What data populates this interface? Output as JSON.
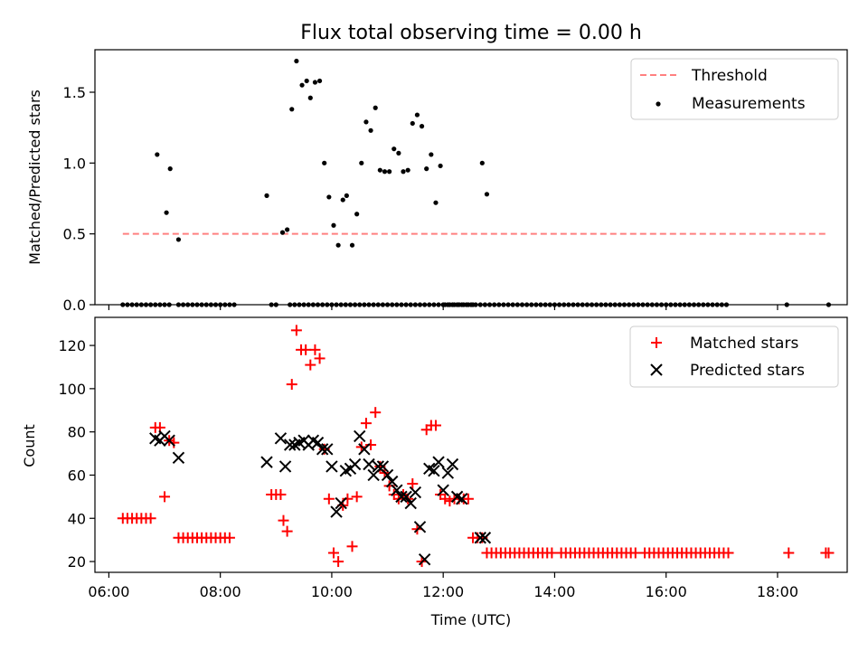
{
  "chart_data": [
    {
      "type": "scatter",
      "title": "Flux total observing time = 0.00 h",
      "xlabel": "",
      "ylabel": "Matched/Predicted stars",
      "xlim": [
        "05:45",
        "19:15"
      ],
      "ylim": [
        0,
        1.8
      ],
      "yticks": [
        "0.0",
        "0.5",
        "1.0",
        "1.5"
      ],
      "legend_position": "top-right",
      "threshold": {
        "name": "Threshold",
        "y": 0.5,
        "x_start": "06:15",
        "x_end": "18:55",
        "color": "#ff8080",
        "style": "dashed"
      },
      "series": [
        {
          "name": "Measurements",
          "color": "#000000",
          "x": [
            "06:15",
            "06:20",
            "06:25",
            "06:30",
            "06:35",
            "06:40",
            "06:45",
            "06:50",
            "06:55",
            "07:00",
            "07:05",
            "07:15",
            "07:20",
            "07:25",
            "07:30",
            "07:35",
            "07:40",
            "07:45",
            "07:50",
            "07:55",
            "08:00",
            "08:05",
            "08:10",
            "08:15",
            "08:55",
            "09:00",
            "09:15",
            "09:20",
            "09:25",
            "09:30",
            "09:35",
            "09:40",
            "09:45",
            "09:50",
            "09:55",
            "10:00",
            "10:05",
            "10:10",
            "10:15",
            "10:20",
            "10:25",
            "10:30",
            "10:35",
            "10:40",
            "10:45",
            "10:50",
            "10:55",
            "11:00",
            "11:05",
            "11:10",
            "11:15",
            "11:20",
            "11:25",
            "11:30",
            "11:35",
            "11:40",
            "11:45",
            "11:50",
            "11:55",
            "12:00",
            "12:05",
            "12:10",
            "12:15",
            "12:20",
            "12:25",
            "12:30",
            "12:35",
            "12:40",
            "12:45",
            "12:50",
            "12:55",
            "13:00",
            "13:05",
            "13:10",
            "13:15",
            "13:20",
            "13:25",
            "13:30",
            "13:35",
            "13:40",
            "13:45",
            "13:50",
            "13:55",
            "14:00",
            "14:05",
            "14:10",
            "14:15",
            "14:20",
            "14:25",
            "14:30",
            "14:35",
            "14:40",
            "14:45",
            "14:50",
            "14:55",
            "15:00",
            "15:05",
            "15:10",
            "15:15",
            "15:20",
            "15:25",
            "15:30",
            "15:35",
            "15:40",
            "15:45",
            "15:50",
            "15:55",
            "16:00",
            "16:05",
            "16:10",
            "16:15",
            "16:20",
            "16:25",
            "16:30",
            "16:35",
            "16:40",
            "16:45",
            "16:50",
            "16:55",
            "17:00",
            "17:05",
            "18:10",
            "18:55"
          ],
          "y": [
            0,
            0,
            0,
            0,
            0,
            0,
            0,
            0,
            0,
            0,
            0,
            0,
            0,
            0,
            0,
            0,
            0,
            0,
            0,
            0,
            0,
            0,
            0,
            0,
            0,
            0,
            0,
            0,
            0,
            0,
            0,
            0,
            0,
            0,
            0,
            0,
            0,
            0,
            0,
            0,
            0,
            0,
            0,
            0,
            0,
            0,
            0,
            0,
            0,
            0,
            0,
            0,
            0,
            0,
            0,
            0,
            0,
            0,
            0,
            0,
            0,
            0,
            0,
            0,
            0,
            0,
            0,
            0,
            0,
            0,
            0,
            0,
            0,
            0,
            0,
            0,
            0,
            0,
            0,
            0,
            0,
            0,
            0,
            0,
            0,
            0,
            0,
            0,
            0,
            0,
            0,
            0,
            0,
            0,
            0,
            0,
            0,
            0,
            0,
            0,
            0,
            0,
            0,
            0,
            0,
            0,
            0,
            0,
            0,
            0,
            0,
            0,
            0,
            0,
            0,
            0,
            0,
            0,
            0,
            0,
            0,
            0,
            0
          ],
          "x_extra": [
            "06:52",
            "07:02",
            "07:06",
            "07:15",
            "08:50",
            "09:07",
            "09:12",
            "09:17",
            "09:22",
            "09:28",
            "09:33",
            "09:37",
            "09:42",
            "09:47",
            "09:52",
            "09:57",
            "10:02",
            "10:07",
            "10:12",
            "10:16",
            "10:22",
            "10:27",
            "10:32",
            "10:37",
            "10:42",
            "10:47",
            "10:52",
            "10:57",
            "11:02",
            "11:07",
            "11:12",
            "11:17",
            "11:22",
            "11:27",
            "11:32",
            "11:37",
            "11:42",
            "11:47",
            "11:52",
            "11:57",
            "12:02",
            "12:07",
            "12:12",
            "12:17",
            "12:22",
            "12:27",
            "12:32",
            "12:42",
            "12:47"
          ],
          "y_extra": [
            1.06,
            0.65,
            0.96,
            0.46,
            0.77,
            0.51,
            0.53,
            1.38,
            1.72,
            1.55,
            1.58,
            1.46,
            1.57,
            1.58,
            1.0,
            0.76,
            0.56,
            0.42,
            0.74,
            0.77,
            0.42,
            0.64,
            1.0,
            1.29,
            1.23,
            1.39,
            0.95,
            0.94,
            0.94,
            1.1,
            1.07,
            0.94,
            0.95,
            1.28,
            1.34,
            1.26,
            0.96,
            1.06,
            0.72,
            0.98,
            0,
            0,
            0,
            0,
            0,
            0,
            0,
            1.0,
            0.78
          ]
        }
      ]
    },
    {
      "type": "scatter",
      "title": "",
      "xlabel": "Time (UTC)",
      "ylabel": "Count",
      "xlim": [
        "05:45",
        "19:15"
      ],
      "ylim": [
        15,
        133
      ],
      "yticks": [
        "20",
        "40",
        "60",
        "80",
        "100",
        "120"
      ],
      "xticks": [
        "06:00",
        "08:00",
        "10:00",
        "12:00",
        "14:00",
        "16:00",
        "18:00"
      ],
      "legend_position": "top-right",
      "series": [
        {
          "name": "Matched stars",
          "marker": "+",
          "color": "#ff0000",
          "x": [
            "06:15",
            "06:20",
            "06:25",
            "06:30",
            "06:35",
            "06:40",
            "06:45",
            "06:50",
            "06:55",
            "07:00",
            "07:05",
            "07:10",
            "07:15",
            "07:20",
            "07:25",
            "07:30",
            "07:35",
            "07:40",
            "07:45",
            "07:50",
            "07:55",
            "08:00",
            "08:05",
            "08:10",
            "08:55",
            "09:00",
            "09:05",
            "09:08",
            "09:12",
            "09:17",
            "09:22",
            "09:27",
            "09:32",
            "09:37",
            "09:42",
            "09:47",
            "09:52",
            "09:57",
            "10:02",
            "10:07",
            "10:12",
            "10:17",
            "10:22",
            "10:27",
            "10:32",
            "10:37",
            "10:42",
            "10:47",
            "10:52",
            "10:57",
            "11:02",
            "11:07",
            "11:12",
            "11:17",
            "11:22",
            "11:27",
            "11:32",
            "11:37",
            "11:42",
            "11:47",
            "11:52",
            "11:57",
            "12:02",
            "12:07",
            "12:12",
            "12:17",
            "12:22",
            "12:27",
            "12:32",
            "12:37",
            "12:42",
            "12:47",
            "12:52",
            "12:57",
            "13:02",
            "13:07",
            "13:12",
            "13:17",
            "13:22",
            "13:27",
            "13:32",
            "13:37",
            "13:42",
            "13:47",
            "13:52",
            "13:57",
            "14:07",
            "14:12",
            "14:17",
            "14:22",
            "14:27",
            "14:32",
            "14:37",
            "14:42",
            "14:47",
            "14:52",
            "14:57",
            "15:02",
            "15:07",
            "15:12",
            "15:17",
            "15:22",
            "15:27",
            "15:37",
            "15:42",
            "15:47",
            "15:52",
            "15:57",
            "16:02",
            "16:07",
            "16:12",
            "16:17",
            "16:22",
            "16:27",
            "16:32",
            "16:37",
            "16:42",
            "16:47",
            "16:52",
            "16:57",
            "17:02",
            "17:07",
            "18:12",
            "18:52",
            "18:55"
          ],
          "values": [
            40,
            40,
            40,
            40,
            40,
            40,
            40,
            82,
            82,
            50,
            76,
            75,
            31,
            31,
            31,
            31,
            31,
            31,
            31,
            31,
            31,
            31,
            31,
            31,
            51,
            51,
            51,
            39,
            34,
            102,
            127,
            118,
            118,
            111,
            118,
            114,
            72,
            49,
            24,
            20,
            46,
            49,
            27,
            50,
            73,
            84,
            74,
            89,
            64,
            61,
            55,
            51,
            49,
            51,
            49,
            56,
            35,
            20,
            81,
            83,
            83,
            51,
            49,
            48,
            49,
            49,
            49,
            49,
            31,
            31,
            31,
            24,
            24,
            24,
            24,
            24,
            24,
            24,
            24,
            24,
            24,
            24,
            24,
            24,
            24,
            24,
            24,
            24,
            24,
            24,
            24,
            24,
            24,
            24,
            24,
            24,
            24,
            24,
            24,
            24,
            24,
            24,
            24,
            24,
            24,
            24,
            24,
            24,
            24,
            24,
            24,
            24,
            24,
            24,
            24,
            24,
            24,
            24,
            24,
            24,
            24,
            24,
            24,
            24,
            24
          ]
        },
        {
          "name": "Predicted stars",
          "marker": "x",
          "color": "#000000",
          "x": [
            "06:50",
            "06:55",
            "07:00",
            "07:05",
            "07:15",
            "08:50",
            "09:05",
            "09:10",
            "09:15",
            "09:20",
            "09:25",
            "09:30",
            "09:35",
            "09:40",
            "09:45",
            "09:50",
            "09:55",
            "10:00",
            "10:05",
            "10:10",
            "10:15",
            "10:20",
            "10:25",
            "10:30",
            "10:35",
            "10:40",
            "10:45",
            "10:50",
            "10:55",
            "11:00",
            "11:05",
            "11:10",
            "11:15",
            "11:20",
            "11:25",
            "11:30",
            "11:35",
            "11:40",
            "11:45",
            "11:50",
            "11:55",
            "12:00",
            "12:05",
            "12:10",
            "12:15",
            "12:20",
            "12:40",
            "12:45"
          ],
          "values": [
            77,
            76,
            78,
            76,
            68,
            66,
            77,
            64,
            74,
            74,
            75,
            76,
            74,
            76,
            75,
            72,
            72,
            64,
            43,
            47,
            62,
            63,
            65,
            78,
            72,
            65,
            60,
            64,
            64,
            60,
            57,
            53,
            50,
            50,
            47,
            52,
            36,
            21,
            63,
            62,
            66,
            53,
            61,
            65,
            50,
            49,
            31,
            31
          ]
        }
      ]
    }
  ]
}
